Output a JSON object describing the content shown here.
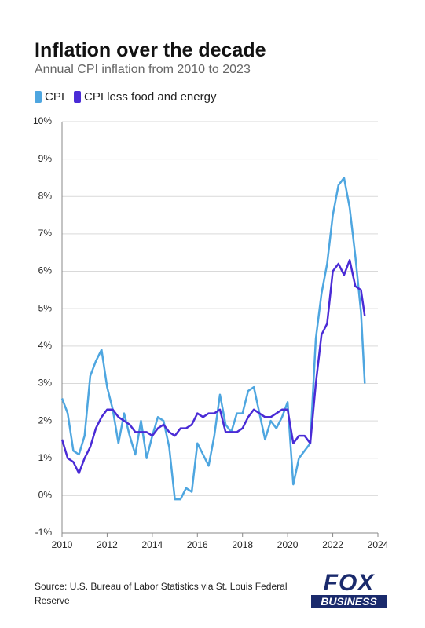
{
  "chart_data": {
    "type": "line",
    "title": "Inflation over the decade",
    "subtitle": "Annual CPI inflation from 2010 to 2023",
    "x": [
      2010.0,
      2010.25,
      2010.5,
      2010.75,
      2011.0,
      2011.25,
      2011.5,
      2011.75,
      2012.0,
      2012.25,
      2012.5,
      2012.75,
      2013.0,
      2013.25,
      2013.5,
      2013.75,
      2014.0,
      2014.25,
      2014.5,
      2014.75,
      2015.0,
      2015.25,
      2015.5,
      2015.75,
      2016.0,
      2016.25,
      2016.5,
      2016.75,
      2017.0,
      2017.25,
      2017.5,
      2017.75,
      2018.0,
      2018.25,
      2018.5,
      2018.75,
      2019.0,
      2019.25,
      2019.5,
      2019.75,
      2020.0,
      2020.25,
      2020.5,
      2020.75,
      2021.0,
      2021.25,
      2021.5,
      2021.75,
      2022.0,
      2022.25,
      2022.5,
      2022.75,
      2023.0,
      2023.25,
      2023.42
    ],
    "series": [
      {
        "name": "CPI",
        "color": "#4ea6e0",
        "values": [
          2.6,
          2.2,
          1.2,
          1.1,
          1.6,
          3.2,
          3.6,
          3.9,
          2.9,
          2.3,
          1.4,
          2.2,
          1.6,
          1.1,
          2.0,
          1.0,
          1.6,
          2.1,
          2.0,
          1.3,
          -0.1,
          -0.1,
          0.2,
          0.1,
          1.4,
          1.1,
          0.8,
          1.6,
          2.7,
          1.9,
          1.7,
          2.2,
          2.2,
          2.8,
          2.9,
          2.2,
          1.5,
          2.0,
          1.8,
          2.1,
          2.5,
          0.3,
          1.0,
          1.2,
          1.4,
          4.2,
          5.4,
          6.2,
          7.5,
          8.3,
          8.5,
          7.7,
          6.4,
          4.9,
          3.0
        ]
      },
      {
        "name": "CPI less food and energy",
        "color": "#4a2bd6",
        "values": [
          1.5,
          1.0,
          0.9,
          0.6,
          1.0,
          1.3,
          1.8,
          2.1,
          2.3,
          2.3,
          2.1,
          2.0,
          1.9,
          1.7,
          1.7,
          1.7,
          1.6,
          1.8,
          1.9,
          1.7,
          1.6,
          1.8,
          1.8,
          1.9,
          2.2,
          2.1,
          2.2,
          2.2,
          2.3,
          1.7,
          1.7,
          1.7,
          1.8,
          2.1,
          2.3,
          2.2,
          2.1,
          2.1,
          2.2,
          2.3,
          2.3,
          1.4,
          1.6,
          1.6,
          1.4,
          3.0,
          4.3,
          4.6,
          6.0,
          6.2,
          5.9,
          6.3,
          5.6,
          5.5,
          4.8
        ]
      }
    ],
    "xlim": [
      2010,
      2024
    ],
    "xticks": [
      2010,
      2012,
      2014,
      2016,
      2018,
      2020,
      2022,
      2024
    ],
    "ylim": [
      -1,
      10
    ],
    "yticks": [
      {
        "value": -1,
        "label": "-1%"
      },
      {
        "value": 0,
        "label": "0%"
      },
      {
        "value": 1,
        "label": "1%"
      },
      {
        "value": 2,
        "label": "2%"
      },
      {
        "value": 3,
        "label": "3%"
      },
      {
        "value": 4,
        "label": "4%"
      },
      {
        "value": 5,
        "label": "5%"
      },
      {
        "value": 6,
        "label": "6%"
      },
      {
        "value": 7,
        "label": "7%"
      },
      {
        "value": 8,
        "label": "8%"
      },
      {
        "value": 9,
        "label": "9%"
      },
      {
        "value": 10,
        "label": "10%"
      }
    ],
    "grid": true,
    "source": "Source: U.S. Bureau of Labor Statistics via St. Louis Federal Reserve",
    "logo": {
      "top": "FOX",
      "bottom": "BUSINESS"
    }
  }
}
